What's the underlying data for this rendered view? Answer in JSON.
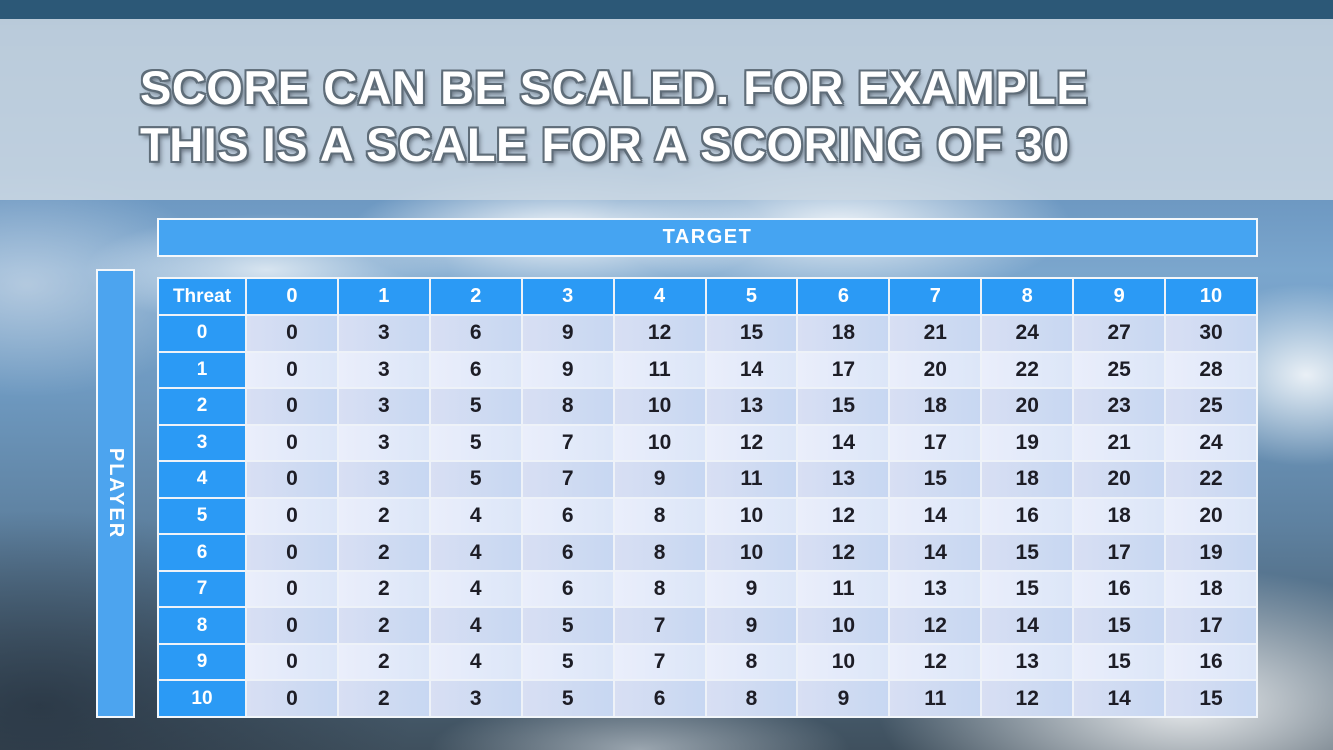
{
  "title": {
    "line1": "SCORE CAN BE SCALED. FOR EXAMPLE",
    "line2": "THIS IS A SCALE FOR A SCORING OF 30"
  },
  "table": {
    "target_label": "TARGET",
    "player_label": "PLAYER",
    "corner_label": "Threat",
    "column_headers": [
      "0",
      "1",
      "2",
      "3",
      "4",
      "5",
      "6",
      "7",
      "8",
      "9",
      "10"
    ],
    "row_headers": [
      "0",
      "1",
      "2",
      "3",
      "4",
      "5",
      "6",
      "7",
      "8",
      "9",
      "10"
    ],
    "rows": [
      [
        0,
        3,
        6,
        9,
        12,
        15,
        18,
        21,
        24,
        27,
        30
      ],
      [
        0,
        3,
        6,
        9,
        11,
        14,
        17,
        20,
        22,
        25,
        28
      ],
      [
        0,
        3,
        5,
        8,
        10,
        13,
        15,
        18,
        20,
        23,
        25
      ],
      [
        0,
        3,
        5,
        7,
        10,
        12,
        14,
        17,
        19,
        21,
        24
      ],
      [
        0,
        3,
        5,
        7,
        9,
        11,
        13,
        15,
        18,
        20,
        22
      ],
      [
        0,
        2,
        4,
        6,
        8,
        10,
        12,
        14,
        16,
        18,
        20
      ],
      [
        0,
        2,
        4,
        6,
        8,
        10,
        12,
        14,
        15,
        17,
        19
      ],
      [
        0,
        2,
        4,
        6,
        8,
        9,
        11,
        13,
        15,
        16,
        18
      ],
      [
        0,
        2,
        4,
        5,
        7,
        9,
        10,
        12,
        14,
        15,
        17
      ],
      [
        0,
        2,
        4,
        5,
        7,
        8,
        10,
        12,
        13,
        15,
        16
      ],
      [
        0,
        2,
        3,
        5,
        6,
        8,
        9,
        11,
        12,
        14,
        15
      ]
    ]
  },
  "colors": {
    "header_blue": "#2b9af5",
    "bar_blue": "#45a4f2",
    "row_even": "#cdd9f2",
    "row_odd": "#e4eafa",
    "top_strip": "#2c5877",
    "title_band": "#cbd8e4",
    "title_text": "#ffffff",
    "cell_text": "#1d1d26"
  }
}
